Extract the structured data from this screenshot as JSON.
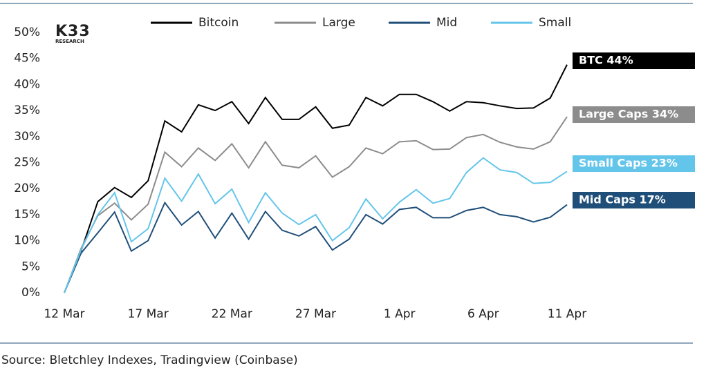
{
  "chart_data": {
    "type": "line",
    "logo": "K33",
    "logo_sub": "RESEARCH",
    "source": "Source: Bletchley Indexes, Tradingview (Coinbase)",
    "categories": [
      "12 Mar",
      null,
      null,
      null,
      null,
      "17 Mar",
      null,
      null,
      null,
      null,
      "22 Mar",
      null,
      null,
      null,
      null,
      "27 Mar",
      null,
      null,
      null,
      null,
      "1 Apr",
      null,
      null,
      null,
      null,
      "6 Apr",
      null,
      null,
      null,
      null,
      "11 Apr"
    ],
    "series": [
      {
        "name": "Bitcoin",
        "color": "#000000",
        "values": [
          0,
          8,
          17.5,
          20.2,
          18.3,
          21.5,
          33,
          30.9,
          36.1,
          35,
          36.7,
          32.5,
          37.5,
          33.3,
          33.3,
          35.7,
          31.6,
          32.2,
          37.5,
          35.9,
          38.1,
          38.1,
          36.7,
          34.9,
          36.7,
          36.5,
          35.9,
          35.4,
          35.5,
          37.4,
          43.8
        ]
      },
      {
        "name": "Large",
        "color": "#8c8c8c",
        "values": [
          0,
          8.5,
          14.8,
          17.2,
          14,
          17,
          27,
          24.2,
          27.8,
          25.4,
          28.6,
          24,
          29,
          24.5,
          24,
          26.3,
          22.2,
          24.2,
          27.8,
          26.7,
          29,
          29.2,
          27.5,
          27.6,
          29.8,
          30.4,
          28.9,
          28,
          27.6,
          29,
          33.8
        ]
      },
      {
        "name": "Mid",
        "color": "#1f4e79",
        "values": [
          0,
          7.6,
          11.5,
          15.5,
          8,
          10,
          17.3,
          13,
          15.6,
          10.5,
          15.3,
          10.3,
          15.6,
          12,
          10.9,
          12.7,
          8.2,
          10.3,
          15,
          13.2,
          16,
          16.4,
          14.4,
          14.4,
          15.8,
          16.4,
          15,
          14.6,
          13.6,
          14.5,
          16.9
        ]
      },
      {
        "name": "Small",
        "color": "#63c5ea",
        "values": [
          0,
          8.2,
          15,
          19.2,
          9.8,
          12.3,
          22,
          17.6,
          22.8,
          17.1,
          19.9,
          13.5,
          19.2,
          15.3,
          13.1,
          15,
          10,
          12.5,
          18,
          14.2,
          17.4,
          19.8,
          17.2,
          18.1,
          23.1,
          25.9,
          23.6,
          23.1,
          21,
          21.2,
          23.3
        ]
      }
    ],
    "annotations": [
      {
        "text": "BTC 44%",
        "color": "#000000"
      },
      {
        "text": "Large Caps 34%",
        "color": "#8c8c8c"
      },
      {
        "text": "Small Caps 23%",
        "color": "#63c5ea"
      },
      {
        "text": "Mid Caps 17%",
        "color": "#1f4e79"
      }
    ],
    "ylim": [
      0,
      50
    ],
    "yticks": [
      {
        "value": 0,
        "label": "0%"
      },
      {
        "value": 5,
        "label": "5%"
      },
      {
        "value": 10,
        "label": "10%"
      },
      {
        "value": 15,
        "label": "15%"
      },
      {
        "value": 20,
        "label": "20%"
      },
      {
        "value": 25,
        "label": "25%"
      },
      {
        "value": 30,
        "label": "30%"
      },
      {
        "value": 35,
        "label": "35%"
      },
      {
        "value": 40,
        "label": "40%"
      },
      {
        "value": 45,
        "label": "45%"
      },
      {
        "value": 50,
        "label": "50%"
      }
    ],
    "grid": false,
    "legend": "top"
  }
}
